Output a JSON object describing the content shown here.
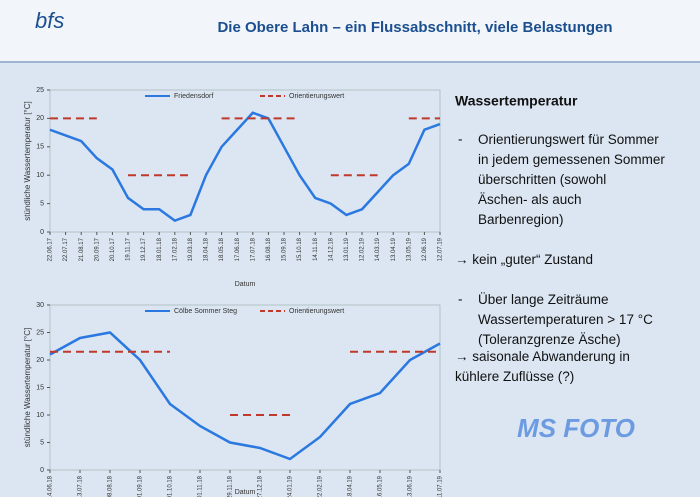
{
  "header": {
    "logo": "bfs",
    "title": "Die Obere Lahn – ein Flussabschnitt, viele Belastungen"
  },
  "panel": {
    "heading": "Wassertemperatur",
    "bullets": [
      "Orientierungswert für Sommer in jedem gemessenen Sommer überschritten (sowohl Äschen- als auch Barbenregion)",
      "→ kein „guter“ Zustand",
      "Über lange Zeiträume Wassertemperaturen > 17 °C (Toleranzgrenze Äsche)",
      "→ saisonale Abwanderung in kühlere Zuflüsse (?)"
    ]
  },
  "watermark": "MS FOTO",
  "chart_data": [
    {
      "type": "line",
      "ylabel": "stündliche Wassertemperatur [°C]",
      "xlabel": "Datum",
      "categories": [
        "22.06.17",
        "22.07.17",
        "21.08.17",
        "20.09.17",
        "20.10.17",
        "19.11.17",
        "19.12.17",
        "18.01.18",
        "17.02.18",
        "19.03.18",
        "18.04.18",
        "18.05.18",
        "17.06.18",
        "17.07.18",
        "16.08.18",
        "15.09.18",
        "15.10.18",
        "14.11.18",
        "14.12.18",
        "13.01.19",
        "12.02.19",
        "14.03.19",
        "13.04.19",
        "13.05.19",
        "12.06.19",
        "12.07.19"
      ],
      "series": [
        {
          "name": "Friedensdorf",
          "color": "#2a78e0",
          "dash": false,
          "values": [
            18,
            17,
            16,
            13,
            11,
            6,
            4,
            4,
            2,
            3,
            10,
            15,
            18,
            21,
            20,
            15,
            10,
            6,
            5,
            3,
            4,
            7,
            10,
            12,
            18,
            19
          ]
        },
        {
          "name": "Orientierungswert",
          "color": "#c0392b",
          "dash": true,
          "values": [
            20,
            20,
            20,
            20,
            null,
            10,
            10,
            10,
            10,
            10,
            null,
            20,
            20,
            20,
            20,
            20,
            20,
            null,
            10,
            10,
            10,
            10,
            null,
            20,
            20,
            20
          ]
        }
      ],
      "ylim": [
        0,
        25
      ],
      "yticks": [
        0,
        5,
        10,
        15,
        20,
        25
      ]
    },
    {
      "type": "line",
      "ylabel": "stündliche Wassertemperatur [°C]",
      "xlabel": "Datum",
      "categories": [
        "14.06.18",
        "13.07.18",
        "08.08.18",
        "01.09.18",
        "01.10.18",
        "01.11.18",
        "29.11.18",
        "27.12.18",
        "24.01.19",
        "22.02.19",
        "18.04.19",
        "16.05.19",
        "13.06.19",
        "11.07.19"
      ],
      "series": [
        {
          "name": "Cölbe Sommer Steg",
          "color": "#2a78e0",
          "dash": false,
          "values": [
            21,
            24,
            25,
            20,
            12,
            8,
            5,
            4,
            2,
            6,
            12,
            14,
            20,
            23
          ]
        },
        {
          "name": "Orientierungswert",
          "color": "#c0392b",
          "dash": true,
          "values": [
            21.5,
            21.5,
            21.5,
            21.5,
            21.5,
            null,
            10,
            10,
            10,
            null,
            21.5,
            21.5,
            21.5,
            21.5
          ]
        }
      ],
      "ylim": [
        0,
        30
      ],
      "yticks": [
        0,
        5,
        10,
        15,
        20,
        25,
        30
      ]
    }
  ]
}
